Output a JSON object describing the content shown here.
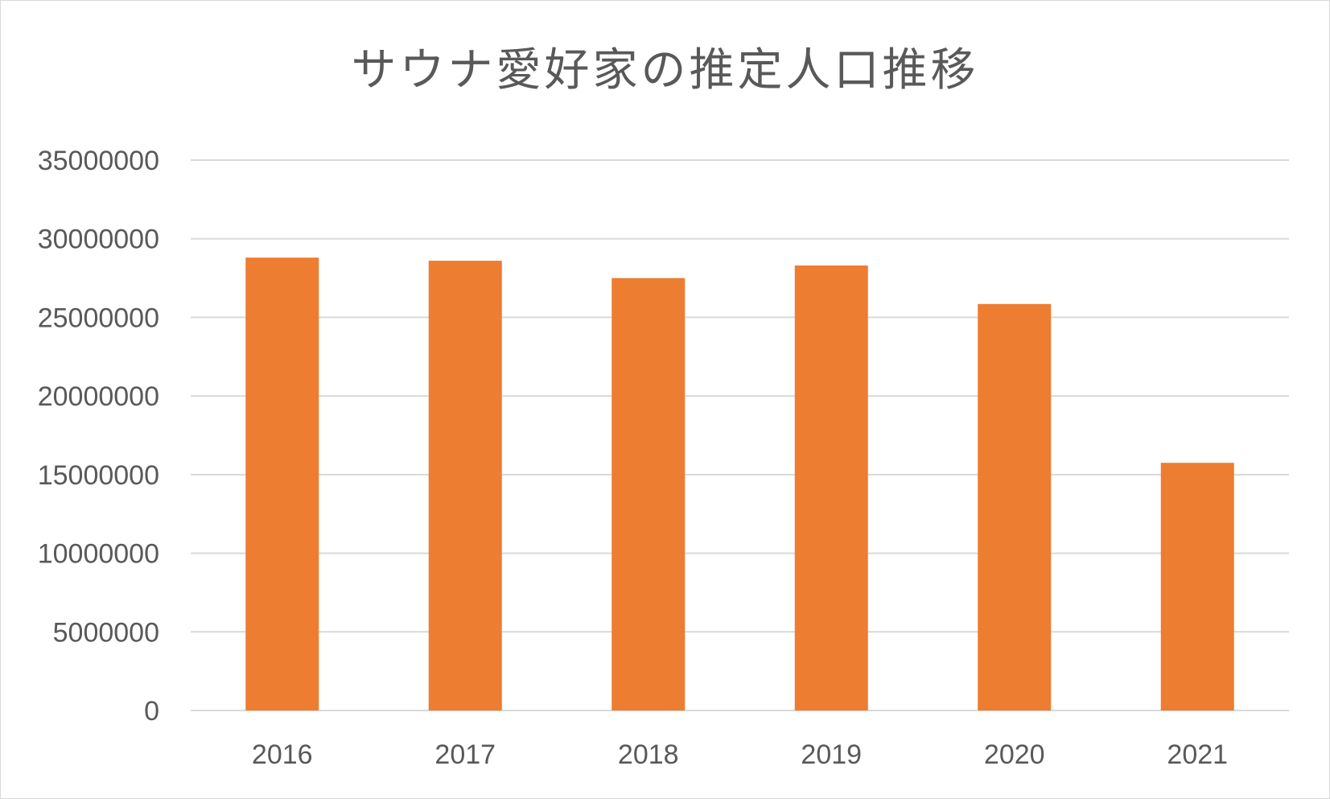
{
  "chart_data": {
    "type": "bar",
    "title": "サウナ愛好家の推定人口推移",
    "categories": [
      "2016",
      "2017",
      "2018",
      "2019",
      "2020",
      "2021"
    ],
    "values": [
      28800000,
      28600000,
      27500000,
      28300000,
      25850000,
      15750000
    ],
    "ylim": [
      0,
      35000000
    ],
    "ytick_labels": [
      "0",
      "5000000",
      "10000000",
      "15000000",
      "20000000",
      "25000000",
      "30000000",
      "35000000"
    ],
    "yticks": [
      0,
      5000000,
      10000000,
      15000000,
      20000000,
      25000000,
      30000000,
      35000000
    ],
    "grid": true,
    "bar_color": "#ED7D31",
    "grid_color": "#D9D9D9",
    "text_color": "#595959"
  }
}
